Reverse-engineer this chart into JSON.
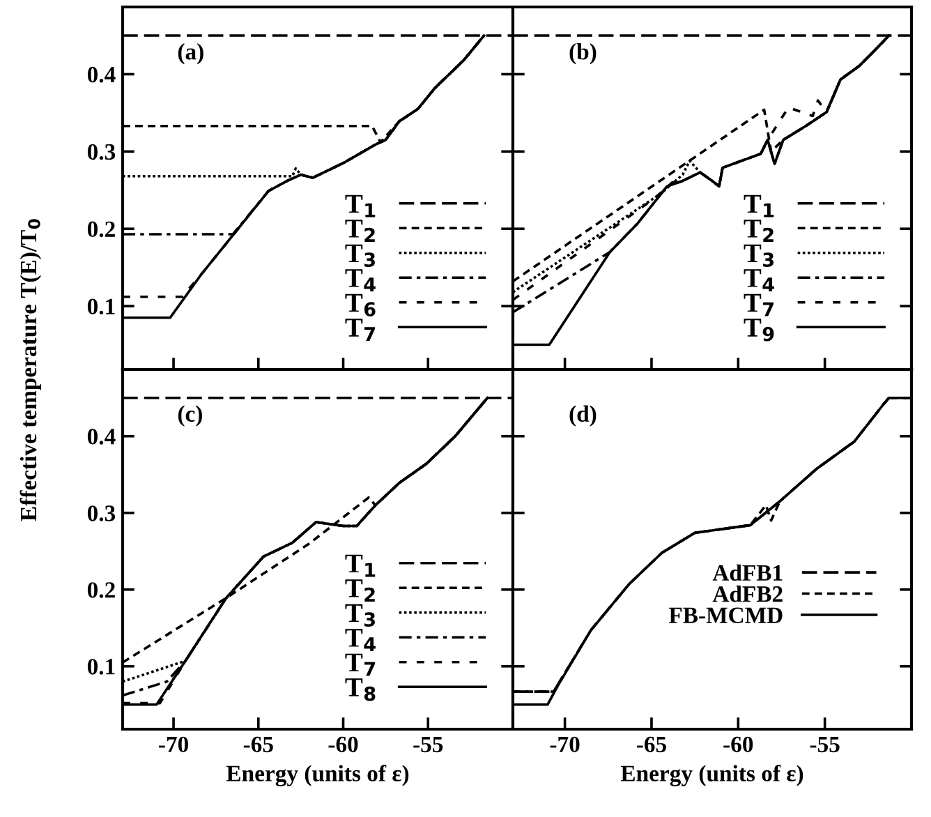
{
  "chart_data": [
    {
      "type": "line",
      "annotations": [
        "(a)"
      ],
      "ylabel": "Effective temperature T(E)/T$_{0}$",
      "xlim": [
        -73,
        -50
      ],
      "ylim": [
        0.018,
        0.487
      ],
      "xticks": [
        -70,
        -65,
        -60,
        -55
      ],
      "yticks": [
        0.1,
        0.2,
        0.3,
        0.4
      ],
      "tick_labels": "y",
      "legend": "bottom right",
      "grid": false,
      "marker": "none",
      "series": [
        {
          "name": "T$_{1}$",
          "color": "#000000",
          "line_style": "dashed",
          "x": [
            -73,
            -50
          ],
          "values": [
            0.45,
            0.45
          ]
        },
        {
          "name": "T$_{2}$",
          "color": "#000000",
          "line_style": "densely_dashed",
          "x": [
            -73,
            -58.3,
            -57.8,
            -56.7,
            -55.6,
            -54.6,
            -52.9,
            -51.7
          ],
          "values": [
            0.333,
            0.333,
            0.312,
            0.339,
            0.355,
            0.382,
            0.418,
            0.45
          ]
        },
        {
          "name": "T$_{3}$",
          "color": "#000000",
          "line_style": "dotted",
          "x": [
            -73,
            -63.0,
            -62.8,
            -62.5,
            -61.8,
            -60.0,
            -58.1,
            -57.5,
            -56.7,
            -55.6,
            -54.6,
            -52.9,
            -51.7
          ],
          "values": [
            0.268,
            0.268,
            0.278,
            0.27,
            0.266,
            0.285,
            0.309,
            0.315,
            0.339,
            0.355,
            0.382,
            0.418,
            0.45
          ]
        },
        {
          "name": "T$_{4}$",
          "color": "#000000",
          "line_style": "dashdot",
          "x": [
            -73,
            -66.5,
            -64.4,
            -63.3,
            -62.5,
            -61.8,
            -60.0,
            -58.1,
            -57.5,
            -56.7,
            -55.6,
            -54.6,
            -52.9,
            -51.7
          ],
          "values": [
            0.193,
            0.193,
            0.249,
            0.262,
            0.27,
            0.266,
            0.285,
            0.309,
            0.315,
            0.339,
            0.355,
            0.382,
            0.418,
            0.45
          ]
        },
        {
          "name": "T$_{6}$",
          "color": "#000000",
          "line_style": "loosely_dashed",
          "x": [
            -73,
            -69.5,
            -68.4,
            -66.6,
            -64.4,
            -63.3,
            -62.5,
            -61.8,
            -60.0,
            -58.1,
            -57.5,
            -56.7,
            -55.6,
            -54.6,
            -52.9,
            -51.7
          ],
          "values": [
            0.112,
            0.112,
            0.14,
            0.189,
            0.249,
            0.262,
            0.27,
            0.266,
            0.285,
            0.309,
            0.315,
            0.339,
            0.355,
            0.382,
            0.418,
            0.45
          ]
        },
        {
          "name": "T$_{7}$",
          "color": "#000000",
          "line_style": "solid",
          "x": [
            -73,
            -70.2,
            -68.4,
            -66.6,
            -64.4,
            -63.3,
            -62.5,
            -61.8,
            -60.0,
            -58.1,
            -57.5,
            -56.7,
            -55.6,
            -54.6,
            -52.9,
            -51.7
          ],
          "values": [
            0.085,
            0.085,
            0.14,
            0.189,
            0.249,
            0.262,
            0.27,
            0.266,
            0.285,
            0.309,
            0.315,
            0.339,
            0.355,
            0.382,
            0.418,
            0.45
          ]
        }
      ]
    },
    {
      "type": "line",
      "annotations": [
        "(b)"
      ],
      "xlim": [
        -73,
        -50
      ],
      "ylim": [
        0.018,
        0.487
      ],
      "xticks": [
        -70,
        -65,
        -60,
        -55
      ],
      "yticks": [
        0.1,
        0.2,
        0.3,
        0.4
      ],
      "tick_labels": false,
      "legend": "bottom right",
      "grid": false,
      "marker": "none",
      "series": [
        {
          "name": "T$_{1}$",
          "color": "#000000",
          "line_style": "dashed",
          "x": [
            -73,
            -50
          ],
          "values": [
            0.45,
            0.45
          ]
        },
        {
          "name": "T$_{2}$",
          "color": "#000000",
          "line_style": "densely_dashed",
          "x": [
            -73,
            -58.5,
            -58.1,
            -57.4,
            -56.1,
            -54.9,
            -54.1,
            -53.0,
            -52.2,
            -51.3
          ],
          "values": [
            0.132,
            0.354,
            0.3,
            0.315,
            0.333,
            0.351,
            0.393,
            0.411,
            0.429,
            0.45
          ]
        },
        {
          "name": "T$_{3}$",
          "color": "#000000",
          "line_style": "dotted",
          "x": [
            -73,
            -64.5,
            -63.2,
            -62.8,
            -62.2,
            -61.5,
            -61.1,
            -60.9,
            -58.7,
            -58.3,
            -57.9,
            -57.4,
            -56.1,
            -54.9,
            -54.1,
            -53.0,
            -52.2,
            -51.3
          ],
          "values": [
            0.118,
            0.245,
            0.27,
            0.288,
            0.273,
            0.262,
            0.255,
            0.279,
            0.297,
            0.315,
            0.284,
            0.315,
            0.333,
            0.351,
            0.393,
            0.411,
            0.429,
            0.45
          ]
        },
        {
          "name": "T$_{4}$",
          "color": "#000000",
          "line_style": "dashdot",
          "x": [
            -73,
            -67.4,
            -65.8,
            -64.1,
            -63.2,
            -62.2,
            -61.5,
            -61.1,
            -60.9,
            -58.7,
            -58.3,
            -57.9,
            -57.4,
            -56.1,
            -54.9,
            -54.1,
            -53.0,
            -52.2,
            -51.3
          ],
          "values": [
            0.092,
            0.17,
            0.207,
            0.255,
            0.262,
            0.273,
            0.262,
            0.255,
            0.279,
            0.297,
            0.315,
            0.284,
            0.315,
            0.333,
            0.351,
            0.393,
            0.411,
            0.429,
            0.45
          ]
        },
        {
          "name": "T$_{7}$",
          "color": "#000000",
          "line_style": "loosely_dashed",
          "x": [
            -73,
            -64.8,
            -63.8,
            -63.2,
            -62.2,
            -61.5,
            -61.1,
            -60.9,
            -58.7,
            -58.3,
            -57.1,
            -55.7,
            -55.4,
            -54.9,
            -54.1,
            -53.0,
            -52.2,
            -51.3
          ],
          "values": [
            0.108,
            0.24,
            0.26,
            0.262,
            0.273,
            0.262,
            0.255,
            0.279,
            0.297,
            0.315,
            0.357,
            0.346,
            0.366,
            0.351,
            0.393,
            0.411,
            0.429,
            0.45
          ]
        },
        {
          "name": "T$_{9}$",
          "color": "#000000",
          "line_style": "solid",
          "x": [
            -73,
            -70.9,
            -67.4,
            -65.8,
            -64.1,
            -63.2,
            -62.2,
            -61.5,
            -61.1,
            -60.9,
            -58.7,
            -58.3,
            -57.9,
            -57.4,
            -56.1,
            -54.9,
            -54.1,
            -53.0,
            -52.2,
            -51.3
          ],
          "values": [
            0.05,
            0.05,
            0.17,
            0.207,
            0.255,
            0.262,
            0.273,
            0.262,
            0.255,
            0.279,
            0.297,
            0.315,
            0.284,
            0.315,
            0.333,
            0.351,
            0.393,
            0.411,
            0.429,
            0.45
          ]
        }
      ]
    },
    {
      "type": "line",
      "annotations": [
        "(c)"
      ],
      "xlabel": "Energy (units of ε)",
      "xlim": [
        -73,
        -50
      ],
      "ylim": [
        0.018,
        0.487
      ],
      "xticks": [
        -70,
        -65,
        -60,
        -55
      ],
      "yticks": [
        0.1,
        0.2,
        0.3,
        0.4
      ],
      "legend": "bottom right",
      "grid": false,
      "marker": "none",
      "series": [
        {
          "name": "T$_{1}$",
          "color": "#000000",
          "line_style": "dashed",
          "x": [
            -73,
            -50
          ],
          "values": [
            0.45,
            0.45
          ]
        },
        {
          "name": "T$_{2}$",
          "color": "#000000",
          "line_style": "densely_dashed",
          "x": [
            -73,
            -66.9,
            -62.0,
            -58.5,
            -58.1,
            -56.7,
            -55.1,
            -53.4,
            -51.8,
            -51.5
          ],
          "values": [
            0.105,
            0.189,
            0.26,
            0.32,
            0.31,
            0.339,
            0.364,
            0.4,
            0.442,
            0.45
          ]
        },
        {
          "name": "T$_{3}$",
          "color": "#000000",
          "line_style": "dotted",
          "x": [
            -73,
            -69.3,
            -66.9,
            -64.7,
            -63.0,
            -61.6,
            -60.0,
            -59.2,
            -58.1,
            -56.7,
            -55.1,
            -53.4,
            -51.8,
            -51.5
          ],
          "values": [
            0.08,
            0.107,
            0.189,
            0.243,
            0.261,
            0.288,
            0.283,
            0.283,
            0.31,
            0.339,
            0.364,
            0.4,
            0.442,
            0.45
          ]
        },
        {
          "name": "T$_{4}$",
          "color": "#000000",
          "line_style": "dashdot",
          "x": [
            -73,
            -70.4,
            -69.3,
            -66.9,
            -64.7,
            -63.0,
            -61.6,
            -60.0,
            -59.2,
            -58.1,
            -56.7,
            -55.1,
            -53.4,
            -51.8,
            -51.5
          ],
          "values": [
            0.062,
            0.08,
            0.107,
            0.189,
            0.243,
            0.261,
            0.288,
            0.283,
            0.283,
            0.31,
            0.339,
            0.364,
            0.4,
            0.442,
            0.45
          ]
        },
        {
          "name": "T$_{7}$",
          "color": "#000000",
          "line_style": "loosely_dashed",
          "x": [
            -73,
            -70.8,
            -69.3,
            -66.9,
            -64.7,
            -63.0,
            -61.6,
            -60.0,
            -59.2,
            -58.1,
            -56.7,
            -55.1,
            -53.4,
            -51.8,
            -51.5
          ],
          "values": [
            0.052,
            0.052,
            0.107,
            0.189,
            0.243,
            0.261,
            0.288,
            0.283,
            0.283,
            0.31,
            0.339,
            0.364,
            0.4,
            0.442,
            0.45
          ]
        },
        {
          "name": "T$_{8}$",
          "color": "#000000",
          "line_style": "solid",
          "x": [
            -73,
            -71.0,
            -69.3,
            -66.9,
            -64.7,
            -63.0,
            -61.6,
            -60.0,
            -59.2,
            -58.1,
            -56.7,
            -55.1,
            -53.4,
            -51.8,
            -51.5
          ],
          "values": [
            0.05,
            0.05,
            0.107,
            0.189,
            0.243,
            0.261,
            0.288,
            0.283,
            0.283,
            0.31,
            0.339,
            0.364,
            0.4,
            0.442,
            0.45
          ]
        }
      ]
    },
    {
      "type": "line",
      "annotations": [
        "(d)"
      ],
      "xlabel": "Energy (units of ε)",
      "xlim": [
        -73,
        -50
      ],
      "ylim": [
        0.018,
        0.487
      ],
      "xticks": [
        -70,
        -65,
        -60,
        -55
      ],
      "yticks": [
        0.1,
        0.2,
        0.3,
        0.4
      ],
      "tick_labels": "x",
      "legend": "right",
      "grid": false,
      "marker": "none",
      "series": [
        {
          "name": "AdFB1",
          "color": "#000000",
          "line_style": "dashed",
          "x": [
            -73,
            -70.65,
            -68.5,
            -66.3,
            -64.4,
            -62.5,
            -60.9,
            -59.3,
            -57.6,
            -55.5,
            -53.3,
            -51.6,
            -51.3,
            -50
          ],
          "values": [
            0.067,
            0.067,
            0.147,
            0.207,
            0.248,
            0.274,
            0.279,
            0.284,
            0.315,
            0.357,
            0.393,
            0.442,
            0.45,
            0.45
          ]
        },
        {
          "name": "AdFB2",
          "color": "#000000",
          "line_style": "densely_dashed",
          "x": [
            -73,
            -70.65,
            -68.5,
            -66.3,
            -64.4,
            -62.5,
            -60.9,
            -59.3,
            -58.4,
            -58.1,
            -57.6,
            -55.5,
            -53.3,
            -51.6,
            -51.3,
            -50
          ],
          "values": [
            0.067,
            0.067,
            0.147,
            0.207,
            0.248,
            0.274,
            0.279,
            0.284,
            0.31,
            0.29,
            0.315,
            0.357,
            0.393,
            0.442,
            0.45,
            0.45
          ]
        },
        {
          "name": "FB-MCMD",
          "color": "#000000",
          "line_style": "solid",
          "x": [
            -73,
            -71.0,
            -70.4,
            -68.5,
            -66.3,
            -64.4,
            -62.5,
            -60.9,
            -59.3,
            -57.6,
            -55.5,
            -53.3,
            -51.6,
            -51.3,
            -50
          ],
          "values": [
            0.05,
            0.05,
            0.075,
            0.147,
            0.207,
            0.248,
            0.274,
            0.279,
            0.284,
            0.315,
            0.357,
            0.393,
            0.442,
            0.45,
            0.45
          ]
        }
      ]
    }
  ]
}
